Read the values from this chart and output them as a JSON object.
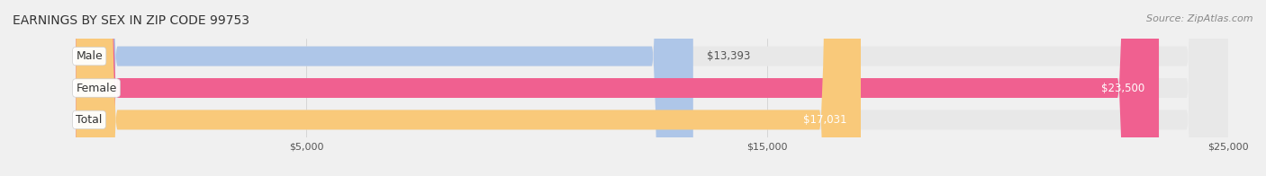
{
  "title": "EARNINGS BY SEX IN ZIP CODE 99753",
  "source": "Source: ZipAtlas.com",
  "categories": [
    "Male",
    "Female",
    "Total"
  ],
  "values": [
    13393,
    23500,
    17031
  ],
  "bar_colors": [
    "#aec6e8",
    "#f06090",
    "#f9c97a"
  ],
  "label_colors": [
    "#555555",
    "#ffffff",
    "#ffffff"
  ],
  "value_labels": [
    "$13,393",
    "$23,500",
    "$17,031"
  ],
  "x_min": 0,
  "x_max": 25000,
  "x_ticks": [
    5000,
    15000,
    25000
  ],
  "x_tick_labels": [
    "$5,000",
    "$15,000",
    "$25,000"
  ],
  "background_color": "#f0f0f0",
  "bar_background_color": "#e8e8e8",
  "title_fontsize": 10,
  "source_fontsize": 8,
  "label_fontsize": 9,
  "value_fontsize": 8.5
}
